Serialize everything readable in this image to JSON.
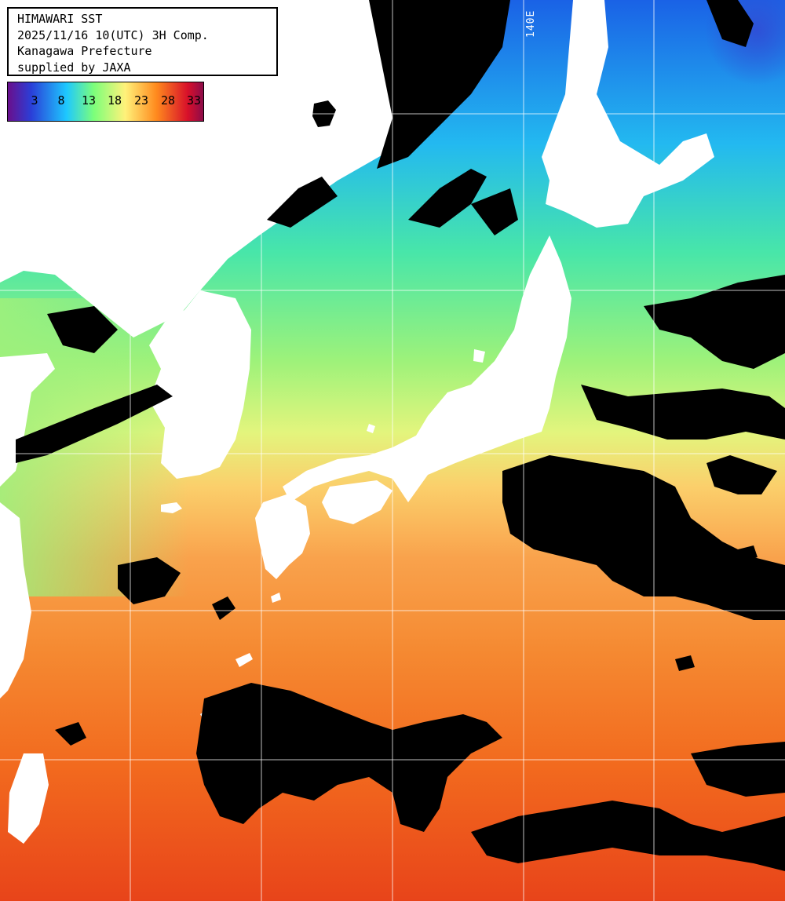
{
  "header": {
    "line1": "HIMAWARI SST",
    "line2": "2025/11/16 10(UTC) 3H Comp.",
    "line3": "Kanagawa Prefecture",
    "line4": "supplied by JAXA"
  },
  "legend": {
    "ticks": [
      "3",
      "8",
      "13",
      "18",
      "23",
      "28",
      "33"
    ],
    "colors": [
      "#6a0f8c",
      "#2a3fd8",
      "#1ec8ff",
      "#7cff7a",
      "#fff27a",
      "#ff8a1e",
      "#d8102a",
      "#8c0b4a"
    ]
  },
  "graticule": {
    "lon_label": "140E"
  },
  "palette": {
    "land": "#ffffff",
    "cloud": "#000000",
    "grid": "#ffffff"
  }
}
